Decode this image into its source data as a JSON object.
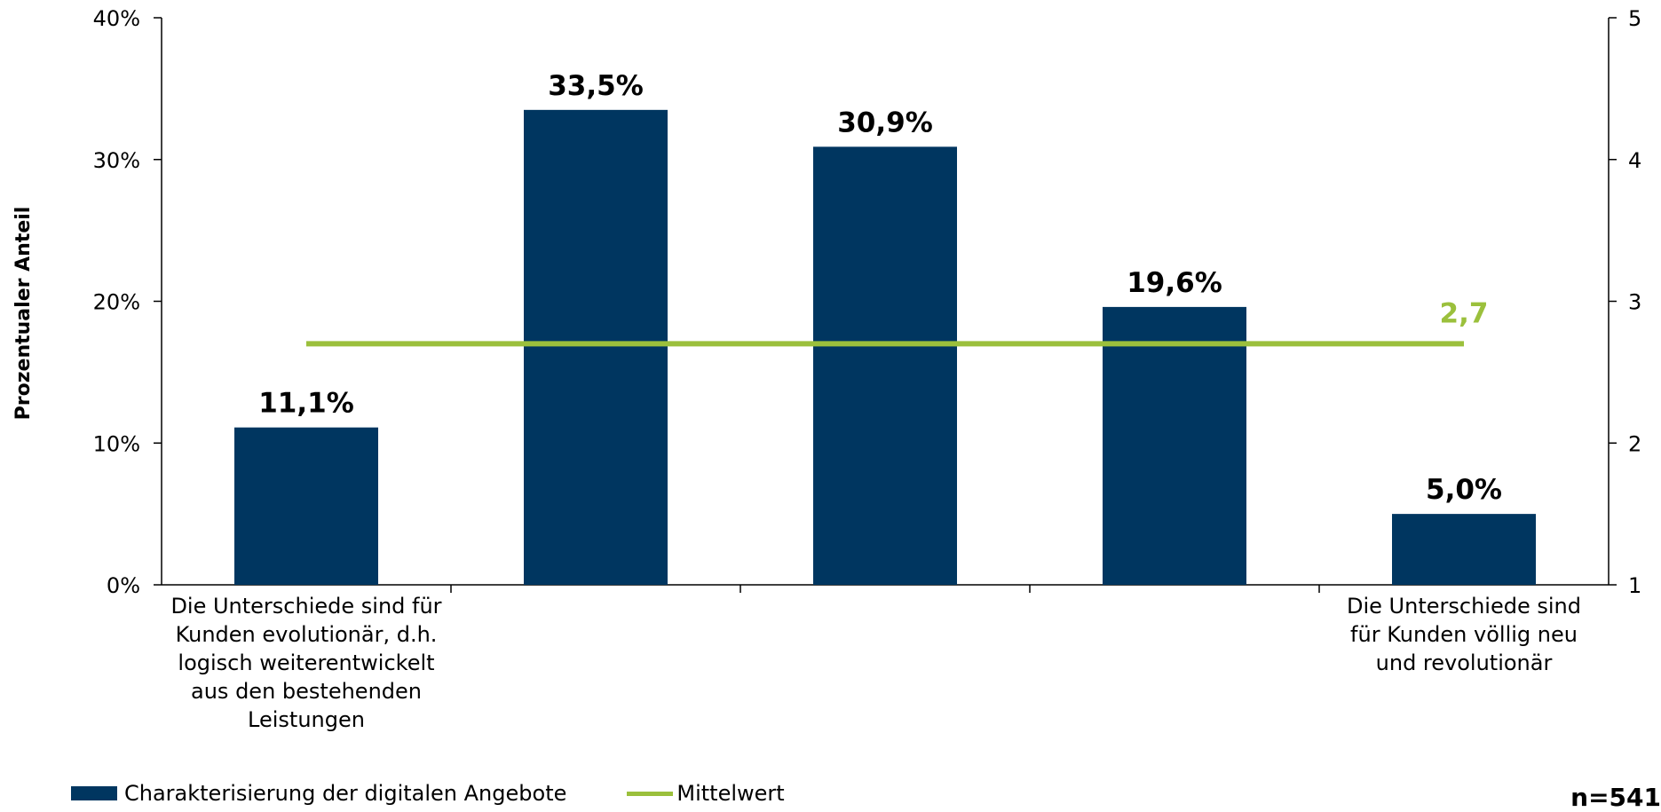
{
  "chart_data": {
    "type": "bar",
    "categories": [
      "Die Unterschiede sind für Kunden evolutionär, d.h. logisch weiterentwickelt aus den bestehenden Leistungen",
      "",
      "",
      "",
      "Die Unterschiede sind für Kunden völlig neu und revolutionär"
    ],
    "category_label_lines": [
      [
        "Die Unterschiede sind für",
        "Kunden evolutionär, d.h.",
        "logisch weiterentwickelt",
        "aus den bestehenden",
        "Leistungen"
      ],
      [],
      [],
      [],
      [
        "Die Unterschiede sind",
        "für Kunden völlig neu",
        "und revolutionär"
      ]
    ],
    "series": [
      {
        "name": "Charakterisierung der digitalen Angebote",
        "values": [
          11.1,
          33.5,
          30.9,
          19.6,
          5.0
        ],
        "labels": [
          "11,1%",
          "33,5%",
          "30,9%",
          "19,6%",
          "5,0%"
        ],
        "color": "#003660"
      },
      {
        "name": "Mittelwert",
        "type": "line",
        "axis": "right",
        "value": 2.7,
        "label": "2,7",
        "color": "#9bc03c"
      }
    ],
    "ylabel": "Prozentualer Anteil",
    "ylim": [
      0,
      40
    ],
    "yticks": [
      "0%",
      "10%",
      "20%",
      "30%",
      "40%"
    ],
    "y2lim": [
      1,
      5
    ],
    "y2ticks": [
      "1",
      "2",
      "3",
      "4",
      "5"
    ],
    "grid": false,
    "legend_position": "bottom-left"
  },
  "legend": {
    "bar_label": "Charakterisierung der digitalen Angebote",
    "line_label": "Mittelwert"
  },
  "note": "n=541",
  "colors": {
    "bar": "#003660",
    "mean": "#9bc03c",
    "axis": "#000000"
  }
}
